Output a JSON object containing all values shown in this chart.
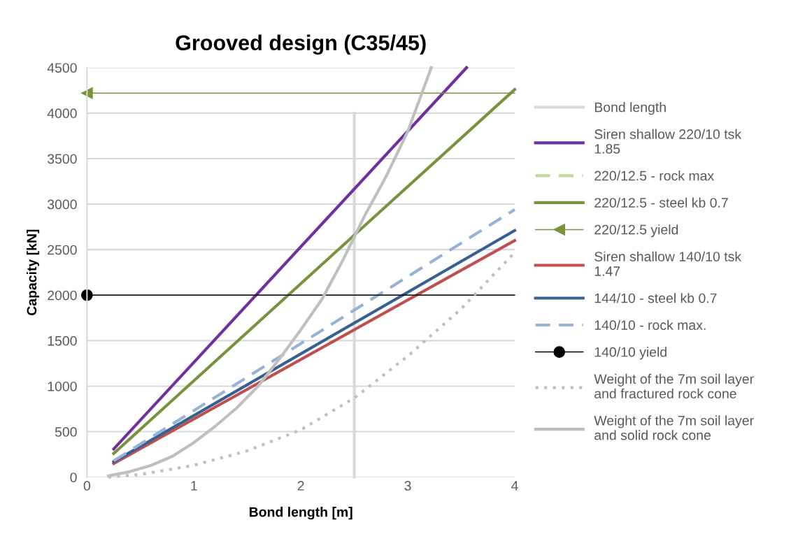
{
  "chart_data": {
    "type": "line",
    "title": "Grooved design (C35/45)",
    "xlabel": "Bond length [m]",
    "ylabel": "Capacity [kN]",
    "xlim": [
      0,
      4
    ],
    "xticks": [
      0,
      1,
      2,
      3,
      4
    ],
    "ylim": [
      0,
      4500
    ],
    "yticks": [
      0,
      500,
      1000,
      1500,
      2000,
      2500,
      3000,
      3500,
      4000,
      4500
    ],
    "grid": "y",
    "legend": "right",
    "line_style": "solid",
    "marker": "none",
    "series": [
      {
        "name": "Bond length",
        "color": "#d9d9d9",
        "x": [
          2.5,
          2.5
        ],
        "values": [
          0,
          4000
        ]
      },
      {
        "name": "Siren shallow 220/10 tsk\n1.85",
        "color": "#7030a0",
        "x": [
          0.25,
          3.55
        ],
        "values": [
          310,
          4500
        ]
      },
      {
        "name": "220/12.5 - rock max",
        "color": "#c3d69b",
        "line_style": "dashed",
        "values": [
          null,
          null
        ]
      },
      {
        "name": "220/12.5 - steel kb 0.7",
        "color": "#77933c",
        "x": [
          0.25,
          4
        ],
        "values": [
          260,
          4260
        ]
      },
      {
        "name": "220/12.5 yield",
        "color": "#77933c",
        "marker": "triangle",
        "x": [
          0,
          4
        ],
        "values": [
          4220,
          4220
        ]
      },
      {
        "name": "Siren shallow 140/10 tsk\n1.47",
        "color": "#c0504d",
        "x": [
          0.25,
          4
        ],
        "values": [
          150,
          2600
        ]
      },
      {
        "name": "144/10 - steel kb 0.7",
        "color": "#376092",
        "x": [
          0.25,
          4
        ],
        "values": [
          170,
          2710
        ]
      },
      {
        "name": "140/10 - rock max.",
        "color": "#95b3d7",
        "line_style": "dashed",
        "x": [
          0.25,
          4
        ],
        "values": [
          180,
          2940
        ]
      },
      {
        "name": "140/10 yield",
        "color": "#000000",
        "marker": "circle",
        "x": [
          0,
          4
        ],
        "values": [
          2000,
          2000
        ]
      },
      {
        "name": "Weight of the 7m soil layer\nand fractured rock cone",
        "color": "#bfbfbf",
        "line_style": "dotted",
        "x": [
          0.2,
          0.5,
          1,
          1.5,
          2,
          2.5,
          3,
          3.5,
          4
        ],
        "values": [
          0,
          30,
          130,
          290,
          520,
          870,
          1330,
          1850,
          2470
        ]
      },
      {
        "name": "Weight of the 7m soil layer\nand solid rock cone",
        "color": "#bfbfbf",
        "x": [
          0.2,
          0.4,
          0.6,
          0.8,
          1,
          1.2,
          1.4,
          1.6,
          1.8,
          2.0,
          2.2,
          2.4,
          2.6,
          2.8,
          3.0,
          3.22
        ],
        "values": [
          15,
          60,
          130,
          230,
          380,
          560,
          760,
          1000,
          1300,
          1620,
          1960,
          2400,
          2880,
          3310,
          3800,
          4500
        ]
      }
    ]
  }
}
